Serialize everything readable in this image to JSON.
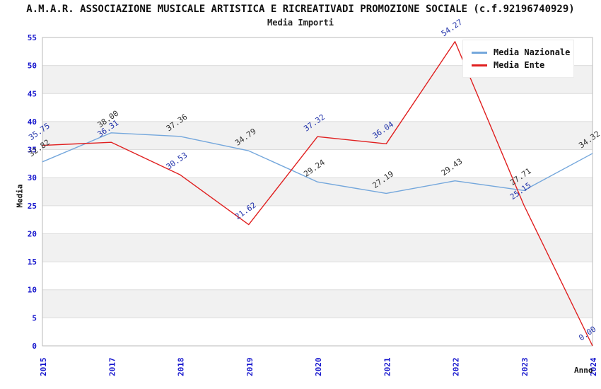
{
  "header": {
    "title": "A.M.A.R. ASSOCIAZIONE MUSICALE ARTISTICA E RICREATIVADI PROMOZIONE SOCIALE (c.f.92196740929)",
    "subtitle": "Media Importi"
  },
  "axes": {
    "y_title": "Media",
    "x_title": "Anno"
  },
  "legend": {
    "items": [
      {
        "label": "Media Nazionale",
        "color": "#74a7dc"
      },
      {
        "label": "Media Ente",
        "color": "#e01f1f"
      }
    ]
  },
  "colors": {
    "tick_label": "#1515cd",
    "grid_line": "#dcdcdc",
    "band_fill": "#f1f1f1",
    "plot_border": "#b9b9b9",
    "nazionale_line": "#74a7dc",
    "ente_line": "#e01f1f",
    "nazionale_value_label": "#303030",
    "ente_value_label": "#2233aa"
  },
  "chart_data": {
    "type": "line",
    "title": "Media Importi",
    "xlabel": "Anno",
    "ylabel": "Media",
    "categories": [
      "2015",
      "2017",
      "2018",
      "2019",
      "2020",
      "2021",
      "2022",
      "2023",
      "2024"
    ],
    "series": [
      {
        "name": "Media Nazionale",
        "color": "#74a7dc",
        "label_color": "#303030",
        "values": [
          32.82,
          38.0,
          37.36,
          34.79,
          29.24,
          27.19,
          29.43,
          27.71,
          34.32
        ]
      },
      {
        "name": "Media Ente",
        "color": "#e01f1f",
        "label_color": "#2233aa",
        "values": [
          35.75,
          36.31,
          30.53,
          21.62,
          37.32,
          36.04,
          54.27,
          25.15,
          0.0
        ]
      }
    ],
    "ylim": [
      0,
      55
    ],
    "ytick_step": 5,
    "grid": true,
    "banded_background": true,
    "legend_position": "top-right",
    "value_labels": "rotated -35deg, two decimals"
  }
}
